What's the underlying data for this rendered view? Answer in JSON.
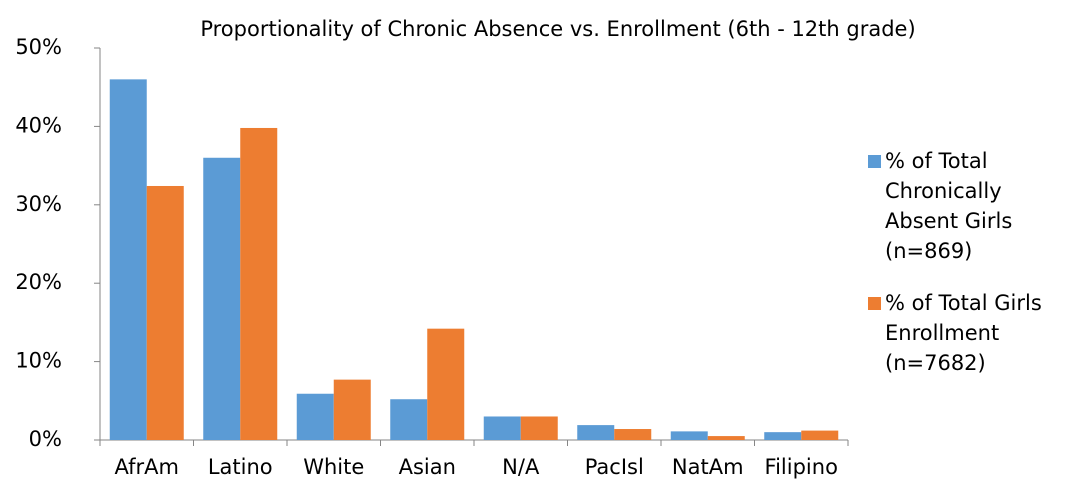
{
  "chart_data": {
    "type": "bar",
    "title": "Proportionality of Chronic Absence vs. Enrollment (6th - 12th grade)",
    "categories": [
      "AfrAm",
      "Latino",
      "White",
      "Asian",
      "N/A",
      "PacIsl",
      "NatAm",
      "Filipino"
    ],
    "series": [
      {
        "name": "% of Total Chronically Absent Girls (n=869)",
        "color": "#5b9bd5",
        "values": [
          46.0,
          36.0,
          5.9,
          5.2,
          3.0,
          1.9,
          1.1,
          1.0
        ]
      },
      {
        "name": "% of Total Girls Enrollment (n=7682)",
        "color": "#ed7d31",
        "values": [
          32.4,
          39.8,
          7.7,
          14.2,
          3.0,
          1.4,
          0.5,
          1.2
        ]
      }
    ],
    "ylim": [
      0,
      50
    ],
    "yticks": [
      {
        "value": 0,
        "label": "0%"
      },
      {
        "value": 10,
        "label": "10%"
      },
      {
        "value": 20,
        "label": "20%"
      },
      {
        "value": 30,
        "label": "30%"
      },
      {
        "value": 40,
        "label": "40%"
      },
      {
        "value": 50,
        "label": "50%"
      }
    ],
    "grid": false,
    "legend": "right"
  }
}
